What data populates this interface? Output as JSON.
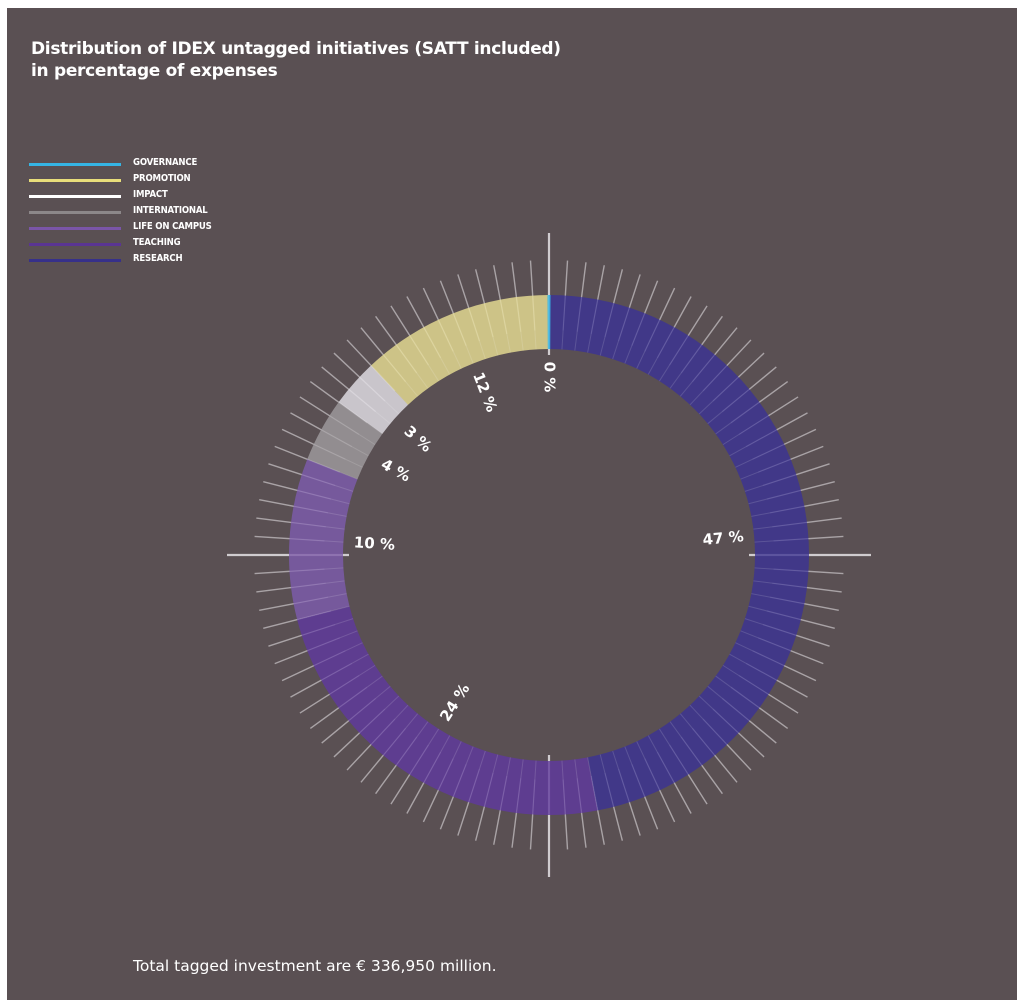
{
  "title_lines": [
    "Distribution of IDEX untagged initiatives (SATT included)",
    "in percentage of expenses"
  ],
  "footnote": "Total tagged investment are € 336,950 million.",
  "chart_data": {
    "type": "pie",
    "style": "donut",
    "title": "Distribution of IDEX untagged initiatives (SATT included) in percentage of expenses",
    "legend_position": "top-left",
    "slices": [
      {
        "label": "RESEARCH",
        "value": 47,
        "value_label": "47 %",
        "color": "#3e3490"
      },
      {
        "label": "TEACHING",
        "value": 24,
        "value_label": "24 %",
        "color": "#5f3a98"
      },
      {
        "label": "LIFE ON CAMPUS",
        "value": 10,
        "value_label": "10 %",
        "color": "#7a5aa6"
      },
      {
        "label": "INTERNATIONAL",
        "value": 4,
        "value_label": "4 %",
        "color": "#9a9599"
      },
      {
        "label": "IMPACT",
        "value": 3,
        "value_label": "3 %",
        "color": "#d8d5dc"
      },
      {
        "label": "PROMOTION",
        "value": 12,
        "value_label": "12 %",
        "color": "#ddd38e"
      },
      {
        "label": "GOVERNANCE",
        "value": 0,
        "value_label": "0 %",
        "color": "#35b5e5"
      }
    ],
    "legend_order": [
      "GOVERNANCE",
      "PROMOTION",
      "IMPACT",
      "INTERNATIONAL",
      "LIFE ON CAMPUS",
      "TEACHING",
      "RESEARCH"
    ],
    "legend_colors": [
      "#35b5e5",
      "#e8dd7a",
      "#ffffff",
      "#8c8789",
      "#7a55a8",
      "#5a3592",
      "#36308a"
    ]
  }
}
